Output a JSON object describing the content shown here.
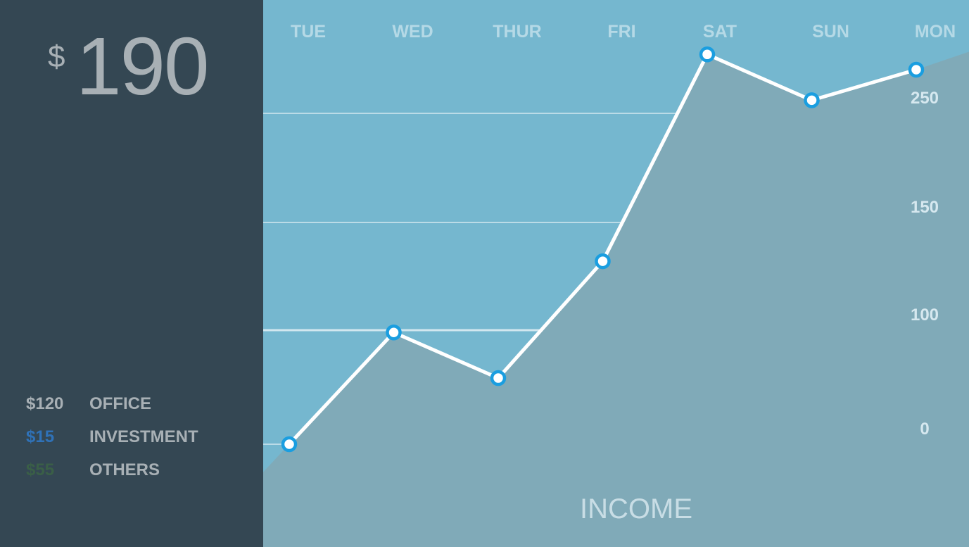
{
  "summary": {
    "currency": "$",
    "total": "190"
  },
  "breakdown": [
    {
      "amount": "$120",
      "label": "OFFICE",
      "color": "#a8b0b5"
    },
    {
      "amount": "$15",
      "label": "INVESTMENT",
      "color": "#2f72b8"
    },
    {
      "amount": "$55",
      "label": "OTHERS",
      "color": "#3a5f47"
    }
  ],
  "chart_data": {
    "type": "line",
    "title": "INCOME",
    "categories": [
      "TUE",
      "WED",
      "THUR",
      "FRI",
      "SAT",
      "SUN",
      "MON"
    ],
    "values": [
      0,
      98,
      58,
      132,
      304,
      262,
      290
    ],
    "yticks": [
      0,
      100,
      150,
      250
    ],
    "ylim": [
      0,
      320
    ],
    "grid": true,
    "colors": {
      "line": "#ffffff",
      "marker": "#1a9ee0",
      "area": "#80aab8",
      "background": "#75b7cf"
    }
  }
}
